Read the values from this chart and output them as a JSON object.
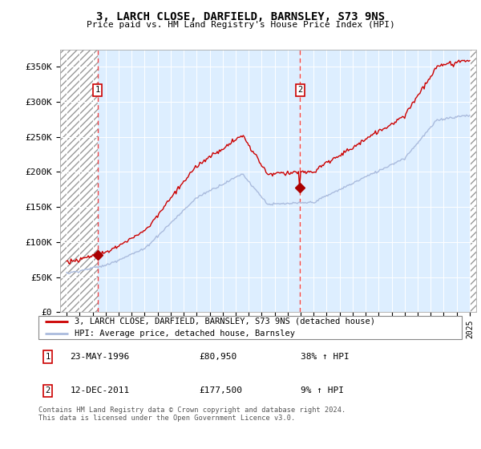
{
  "title": "3, LARCH CLOSE, DARFIELD, BARNSLEY, S73 9NS",
  "subtitle": "Price paid vs. HM Land Registry's House Price Index (HPI)",
  "legend_line1": "3, LARCH CLOSE, DARFIELD, BARNSLEY, S73 9NS (detached house)",
  "legend_line2": "HPI: Average price, detached house, Barnsley",
  "annotation1_label": "1",
  "annotation1_date": "23-MAY-1996",
  "annotation1_price": "£80,950",
  "annotation1_hpi": "38% ↑ HPI",
  "annotation2_label": "2",
  "annotation2_date": "12-DEC-2011",
  "annotation2_price": "£177,500",
  "annotation2_hpi": "9% ↑ HPI",
  "footer": "Contains HM Land Registry data © Crown copyright and database right 2024.\nThis data is licensed under the Open Government Licence v3.0.",
  "sale1_year": 1996.38,
  "sale1_value": 80950,
  "sale2_year": 2011.95,
  "sale2_value": 177500,
  "hpi_color": "#aabbdd",
  "price_color": "#cc0000",
  "marker_color": "#aa0000",
  "vline_color": "#ee4444",
  "background_color": "#ddeeff",
  "ylim_max": 375000,
  "ylim_min": 0,
  "xlim_min": 1993.5,
  "xlim_max": 2025.5
}
